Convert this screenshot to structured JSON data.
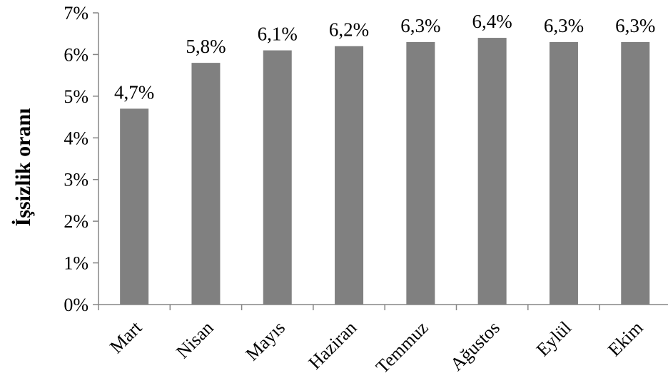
{
  "chart_data": {
    "type": "bar",
    "title": "",
    "xlabel": "",
    "ylabel": "İşsizlik oranı",
    "categories": [
      "Mart",
      "Nisan",
      "Mayıs",
      "Haziran",
      "Temmuz",
      "Ağustos",
      "Eylül",
      "Ekim"
    ],
    "values": [
      4.7,
      5.8,
      6.1,
      6.2,
      6.3,
      6.4,
      6.3,
      6.3
    ],
    "data_labels": [
      "4,7%",
      "5,8%",
      "6,1%",
      "6,2%",
      "6,3%",
      "6,4%",
      "6,3%",
      "6,3%"
    ],
    "ylim": [
      0,
      7
    ],
    "yticks": [
      0,
      1,
      2,
      3,
      4,
      5,
      6,
      7
    ],
    "ytick_labels": [
      "0%",
      "1%",
      "2%",
      "3%",
      "4%",
      "5%",
      "6%",
      "7%"
    ],
    "grid": false,
    "legend": "none",
    "bar_color": "#808080",
    "axis_color": "#868686"
  }
}
